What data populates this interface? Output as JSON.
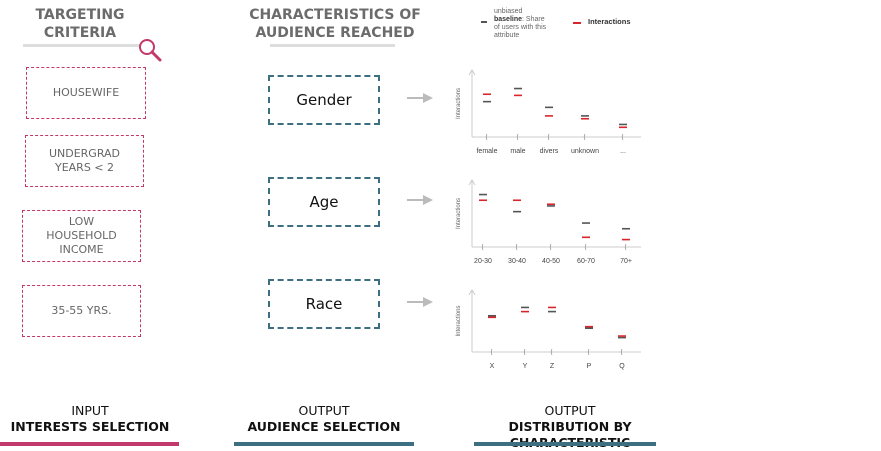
{
  "columns": {
    "targeting": {
      "title_line1": "TARGETING",
      "title_line2": "CRITERIA"
    },
    "characteristics": {
      "title_line1": "CHARACTERISTICS OF",
      "title_line2": "AUDIENCE REACHED"
    }
  },
  "criteria": [
    {
      "lines": [
        "HOUSEWIFE"
      ]
    },
    {
      "lines": [
        "UNDERGRAD",
        "YEARS < 2"
      ]
    },
    {
      "lines": [
        "LOW",
        "HOUSEHOLD",
        "INCOME"
      ]
    },
    {
      "lines": [
        "35-55 YRS."
      ]
    }
  ],
  "characteristics": [
    "Gender",
    "Age",
    "Race"
  ],
  "legend": {
    "baseline_bold": "baseline",
    "baseline_pre": "unbiased",
    "baseline_rest1": ": Share",
    "baseline_rest2": "of users with this",
    "baseline_rest3": "attribute",
    "interactions": "Interactions"
  },
  "colors": {
    "baseline": "#555555",
    "interactions": "#d8262c",
    "criteria_border": "#c2386a",
    "char_border": "#3d6f82",
    "input_bar": "#c2386a",
    "output_bar": "#3d6f82"
  },
  "chart_data": [
    {
      "type": "scatter",
      "title": "Gender",
      "ylabel": "Interactions",
      "categories": [
        "female",
        "male",
        "divers",
        "unknown",
        "..."
      ],
      "series": [
        {
          "name": "baseline",
          "values": [
            0.55,
            0.78,
            0.45,
            0.3,
            0.15
          ]
        },
        {
          "name": "Interactions",
          "values": [
            0.68,
            0.66,
            0.3,
            0.25,
            0.1
          ]
        }
      ],
      "ylim": [
        0,
        1
      ]
    },
    {
      "type": "scatter",
      "title": "Age",
      "ylabel": "Interactions",
      "categories": [
        "20-30",
        "30-40",
        "40-50",
        "60-70",
        "70+"
      ],
      "series": [
        {
          "name": "baseline",
          "values": [
            0.85,
            0.55,
            0.65,
            0.35,
            0.25
          ]
        },
        {
          "name": "Interactions",
          "values": [
            0.75,
            0.75,
            0.68,
            0.1,
            0.06
          ]
        }
      ],
      "ylim": [
        0,
        1
      ]
    },
    {
      "type": "scatter",
      "title": "Race",
      "ylabel": "Interactions",
      "categories": [
        "X",
        "Y",
        "Z",
        "P",
        "Q"
      ],
      "series": [
        {
          "name": "baseline",
          "values": [
            0.62,
            0.78,
            0.7,
            0.38,
            0.2
          ]
        },
        {
          "name": "Interactions",
          "values": [
            0.59,
            0.7,
            0.78,
            0.41,
            0.23
          ]
        }
      ],
      "ylim": [
        0,
        1
      ]
    }
  ],
  "footer": [
    {
      "top": "INPUT",
      "bottom": "INTERESTS SELECTION"
    },
    {
      "top": "OUTPUT",
      "bottom": "AUDIENCE SELECTION"
    },
    {
      "top": "OUTPUT",
      "bottom": "DISTRIBUTION BY CHARACTERISTIC"
    }
  ]
}
